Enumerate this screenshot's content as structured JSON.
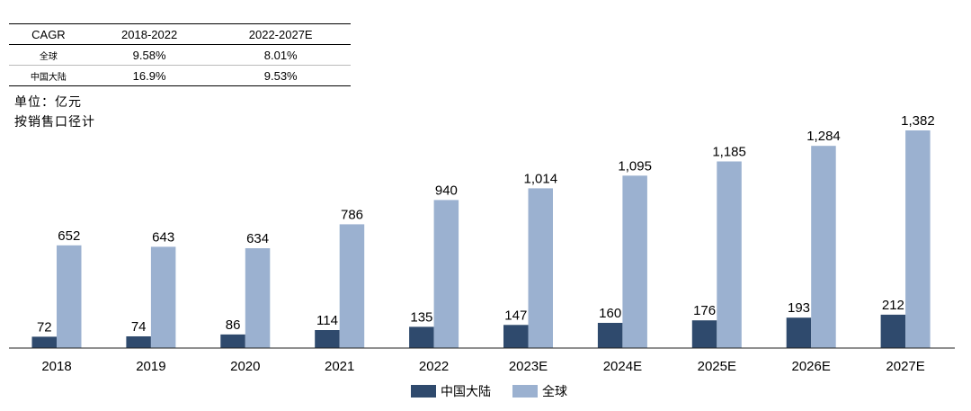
{
  "cagr_table": {
    "headers": [
      "CAGR",
      "2018-2022",
      "2022-2027E"
    ],
    "rows": [
      {
        "name": "全球",
        "values": [
          "9.58%",
          "8.01%"
        ]
      },
      {
        "name": "中国大陆",
        "values": [
          "16.9%",
          "9.53%"
        ]
      }
    ]
  },
  "notes": {
    "unit": "单位：亿元",
    "basis": "按销售口径计"
  },
  "chart_data": {
    "type": "bar",
    "categories": [
      "2018",
      "2019",
      "2020",
      "2021",
      "2022",
      "2023E",
      "2024E",
      "2025E",
      "2026E",
      "2027E"
    ],
    "series": [
      {
        "name": "中国大陆",
        "color": "#2F4A6D",
        "values": [
          72,
          74,
          86,
          114,
          135,
          147,
          160,
          176,
          193,
          212
        ],
        "labels": [
          "72",
          "74",
          "86",
          "114",
          "135",
          "147",
          "160",
          "176",
          "193",
          "212"
        ]
      },
      {
        "name": "全球",
        "color": "#9BB1D0",
        "values": [
          652,
          643,
          634,
          786,
          940,
          1014,
          1095,
          1185,
          1284,
          1382
        ],
        "labels": [
          "652",
          "643",
          "634",
          "786",
          "940",
          "1,014",
          "1,095",
          "1,185",
          "1,284",
          "1,382"
        ]
      }
    ],
    "title": "",
    "xlabel": "",
    "ylabel": "",
    "ylim": [
      0,
      1382
    ],
    "grid": false,
    "legend_position": "bottom-center"
  }
}
